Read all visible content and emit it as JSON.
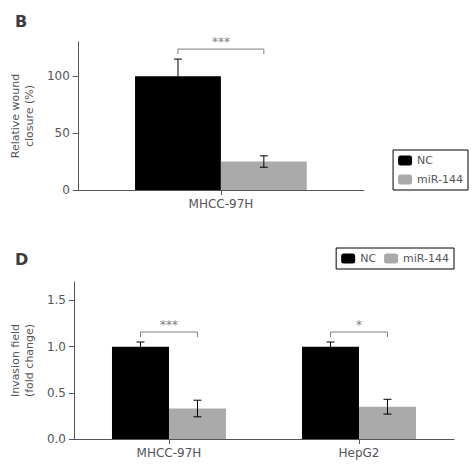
{
  "chart_data": [
    {
      "type": "bar",
      "title": "B",
      "ylabel": "Relative wound\nclosure (%)",
      "categories": [
        "MHCC-97H"
      ],
      "series": [
        {
          "name": "NC",
          "color": "#000000",
          "values": [
            100
          ],
          "errors": [
            15
          ]
        },
        {
          "name": "miR-144",
          "color": "#aaaaaa",
          "values": [
            25
          ],
          "errors": [
            5
          ]
        }
      ],
      "ylim": [
        0,
        130
      ],
      "yticks": [
        0,
        50,
        100
      ],
      "annotations": [
        {
          "text": "***",
          "category": "MHCC-97H"
        }
      ],
      "legend": "lower right",
      "grid": false
    },
    {
      "type": "bar",
      "title": "D",
      "ylabel": "Invasion field\n(fold change)",
      "categories": [
        "MHCC-97H",
        "HepG2"
      ],
      "series": [
        {
          "name": "NC",
          "color": "#000000",
          "values": [
            1.0,
            1.0
          ],
          "errors": [
            0.05,
            0.05
          ]
        },
        {
          "name": "miR-144",
          "color": "#aaaaaa",
          "values": [
            0.33,
            0.35
          ],
          "errors": [
            0.09,
            0.08
          ]
        }
      ],
      "ylim": [
        0,
        1.7
      ],
      "yticks": [
        {
          "value": 0.0,
          "label": "0.0"
        },
        0.5,
        {
          "value": 1.0,
          "label": "1.0"
        },
        1.5
      ],
      "annotations": [
        {
          "text": "***",
          "category": "MHCC-97H"
        },
        {
          "text": "*",
          "category": "HepG2"
        }
      ],
      "legend": "upper right",
      "grid": false
    }
  ]
}
